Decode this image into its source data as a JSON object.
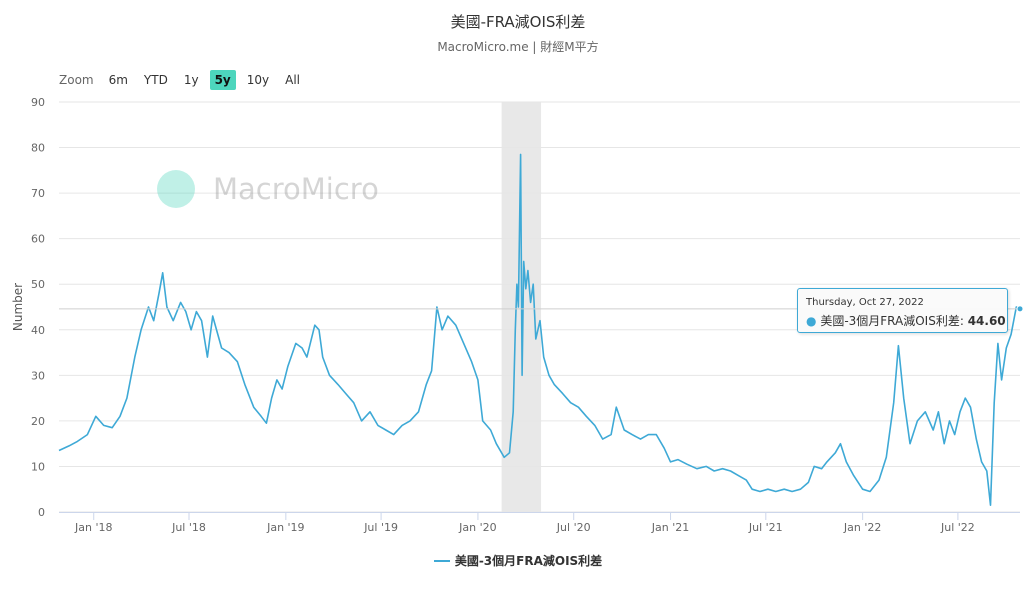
{
  "header": {
    "title": "美國-FRA減OIS利差",
    "subtitle": "MacroMicro.me | 財經M平方"
  },
  "zoom": {
    "label": "Zoom",
    "buttons": [
      "6m",
      "YTD",
      "1y",
      "5y",
      "10y",
      "All"
    ],
    "active": "5y"
  },
  "watermark": "MacroMicro",
  "tooltip": {
    "date": "Thursday, Oct 27, 2022",
    "series": "美國-3個月FRA減OIS利差",
    "value": "44.60"
  },
  "colors": {
    "series": "#3ea9d6",
    "accent": "#4dd6bd",
    "recession_band": "#e8e8e8"
  },
  "chart_data": {
    "type": "line",
    "ylabel": "Number",
    "ylim": [
      0,
      90
    ],
    "yticks": [
      0,
      10,
      20,
      30,
      40,
      50,
      60,
      70,
      80,
      90
    ],
    "xrange": [
      "2017-10-27",
      "2022-10-27"
    ],
    "xticks": [
      {
        "label": "Jan '18",
        "date": "2018-01-01"
      },
      {
        "label": "Jul '18",
        "date": "2018-07-01"
      },
      {
        "label": "Jan '19",
        "date": "2019-01-01"
      },
      {
        "label": "Jul '19",
        "date": "2019-07-01"
      },
      {
        "label": "Jan '20",
        "date": "2020-01-01"
      },
      {
        "label": "Jul '20",
        "date": "2020-07-01"
      },
      {
        "label": "Jan '21",
        "date": "2021-01-01"
      },
      {
        "label": "Jul '21",
        "date": "2021-07-01"
      },
      {
        "label": "Jan '22",
        "date": "2022-01-01"
      },
      {
        "label": "Jul '22",
        "date": "2022-07-01"
      }
    ],
    "shaded_band": [
      "2020-02-15",
      "2020-04-30"
    ],
    "series": [
      {
        "name": "美國-3個月FRA減OIS利差",
        "points": [
          [
            "2017-10-27",
            13.5
          ],
          [
            "2017-11-15",
            14.5
          ],
          [
            "2017-12-01",
            15.5
          ],
          [
            "2017-12-20",
            17.0
          ],
          [
            "2018-01-05",
            21.0
          ],
          [
            "2018-01-20",
            19.0
          ],
          [
            "2018-02-05",
            18.5
          ],
          [
            "2018-02-20",
            21.0
          ],
          [
            "2018-03-05",
            25.0
          ],
          [
            "2018-03-20",
            34.0
          ],
          [
            "2018-04-01",
            40.0
          ],
          [
            "2018-04-15",
            45.0
          ],
          [
            "2018-04-25",
            42.0
          ],
          [
            "2018-05-05",
            48.0
          ],
          [
            "2018-05-12",
            52.5
          ],
          [
            "2018-05-20",
            45.0
          ],
          [
            "2018-06-01",
            42.0
          ],
          [
            "2018-06-15",
            46.0
          ],
          [
            "2018-06-25",
            44.0
          ],
          [
            "2018-07-05",
            40.0
          ],
          [
            "2018-07-15",
            44.0
          ],
          [
            "2018-07-25",
            42.0
          ],
          [
            "2018-08-05",
            34.0
          ],
          [
            "2018-08-15",
            43.0
          ],
          [
            "2018-09-01",
            36.0
          ],
          [
            "2018-09-15",
            35.0
          ],
          [
            "2018-10-01",
            33.0
          ],
          [
            "2018-10-15",
            28.0
          ],
          [
            "2018-11-01",
            23.0
          ],
          [
            "2018-11-15",
            21.0
          ],
          [
            "2018-11-25",
            19.5
          ],
          [
            "2018-12-05",
            25.0
          ],
          [
            "2018-12-15",
            29.0
          ],
          [
            "2018-12-25",
            27.0
          ],
          [
            "2019-01-05",
            32.0
          ],
          [
            "2019-01-20",
            37.0
          ],
          [
            "2019-02-01",
            36.0
          ],
          [
            "2019-02-10",
            34.0
          ],
          [
            "2019-02-25",
            41.0
          ],
          [
            "2019-03-05",
            40.0
          ],
          [
            "2019-03-12",
            34.0
          ],
          [
            "2019-03-25",
            30.0
          ],
          [
            "2019-04-10",
            28.0
          ],
          [
            "2019-04-25",
            26.0
          ],
          [
            "2019-05-10",
            24.0
          ],
          [
            "2019-05-25",
            20.0
          ],
          [
            "2019-06-10",
            22.0
          ],
          [
            "2019-06-25",
            19.0
          ],
          [
            "2019-07-10",
            18.0
          ],
          [
            "2019-07-25",
            17.0
          ],
          [
            "2019-08-10",
            19.0
          ],
          [
            "2019-08-25",
            20.0
          ],
          [
            "2019-09-10",
            22.0
          ],
          [
            "2019-09-25",
            28.0
          ],
          [
            "2019-10-05",
            31.0
          ],
          [
            "2019-10-15",
            45.0
          ],
          [
            "2019-10-25",
            40.0
          ],
          [
            "2019-11-05",
            43.0
          ],
          [
            "2019-11-20",
            41.0
          ],
          [
            "2019-12-05",
            37.0
          ],
          [
            "2019-12-20",
            33.0
          ],
          [
            "2020-01-01",
            29.0
          ],
          [
            "2020-01-10",
            20.0
          ],
          [
            "2020-01-25",
            18.0
          ],
          [
            "2020-02-05",
            15.0
          ],
          [
            "2020-02-20",
            12.0
          ],
          [
            "2020-03-01",
            13.0
          ],
          [
            "2020-03-08",
            22.0
          ],
          [
            "2020-03-12",
            40.0
          ],
          [
            "2020-03-15",
            50.0
          ],
          [
            "2020-03-18",
            45.0
          ],
          [
            "2020-03-22",
            78.5
          ],
          [
            "2020-03-25",
            30.0
          ],
          [
            "2020-03-28",
            55.0
          ],
          [
            "2020-04-01",
            49.0
          ],
          [
            "2020-04-05",
            53.0
          ],
          [
            "2020-04-10",
            46.0
          ],
          [
            "2020-04-15",
            50.0
          ],
          [
            "2020-04-20",
            38.0
          ],
          [
            "2020-04-28",
            42.0
          ],
          [
            "2020-05-05",
            34.0
          ],
          [
            "2020-05-15",
            30.0
          ],
          [
            "2020-05-25",
            28.0
          ],
          [
            "2020-06-10",
            26.0
          ],
          [
            "2020-06-25",
            24.0
          ],
          [
            "2020-07-10",
            23.0
          ],
          [
            "2020-07-25",
            21.0
          ],
          [
            "2020-08-10",
            19.0
          ],
          [
            "2020-08-25",
            16.0
          ],
          [
            "2020-09-10",
            17.0
          ],
          [
            "2020-09-20",
            23.0
          ],
          [
            "2020-10-05",
            18.0
          ],
          [
            "2020-10-20",
            17.0
          ],
          [
            "2020-11-05",
            16.0
          ],
          [
            "2020-11-20",
            17.0
          ],
          [
            "2020-12-05",
            17.0
          ],
          [
            "2020-12-20",
            14.0
          ],
          [
            "2021-01-01",
            11.0
          ],
          [
            "2021-01-15",
            11.5
          ],
          [
            "2021-02-01",
            10.5
          ],
          [
            "2021-02-20",
            9.5
          ],
          [
            "2021-03-10",
            10.0
          ],
          [
            "2021-03-25",
            9.0
          ],
          [
            "2021-04-10",
            9.5
          ],
          [
            "2021-04-25",
            9.0
          ],
          [
            "2021-05-10",
            8.0
          ],
          [
            "2021-05-25",
            7.0
          ],
          [
            "2021-06-05",
            5.0
          ],
          [
            "2021-06-20",
            4.5
          ],
          [
            "2021-07-05",
            5.0
          ],
          [
            "2021-07-20",
            4.5
          ],
          [
            "2021-08-05",
            5.0
          ],
          [
            "2021-08-20",
            4.5
          ],
          [
            "2021-09-05",
            5.0
          ],
          [
            "2021-09-20",
            6.5
          ],
          [
            "2021-10-01",
            10.0
          ],
          [
            "2021-10-15",
            9.5
          ],
          [
            "2021-10-25",
            11.0
          ],
          [
            "2021-11-10",
            13.0
          ],
          [
            "2021-11-20",
            15.0
          ],
          [
            "2021-12-01",
            11.0
          ],
          [
            "2021-12-15",
            8.0
          ],
          [
            "2022-01-01",
            5.0
          ],
          [
            "2022-01-15",
            4.5
          ],
          [
            "2022-02-01",
            7.0
          ],
          [
            "2022-02-15",
            12.0
          ],
          [
            "2022-03-01",
            24.0
          ],
          [
            "2022-03-10",
            36.5
          ],
          [
            "2022-03-20",
            25.0
          ],
          [
            "2022-04-01",
            15.0
          ],
          [
            "2022-04-15",
            20.0
          ],
          [
            "2022-04-30",
            22.0
          ],
          [
            "2022-05-15",
            18.0
          ],
          [
            "2022-05-25",
            22.0
          ],
          [
            "2022-06-05",
            15.0
          ],
          [
            "2022-06-15",
            20.0
          ],
          [
            "2022-06-25",
            17.0
          ],
          [
            "2022-07-05",
            22.0
          ],
          [
            "2022-07-15",
            25.0
          ],
          [
            "2022-07-25",
            23.0
          ],
          [
            "2022-08-05",
            16.0
          ],
          [
            "2022-08-15",
            11.0
          ],
          [
            "2022-08-25",
            9.0
          ],
          [
            "2022-09-01",
            1.5
          ],
          [
            "2022-09-08",
            24.0
          ],
          [
            "2022-09-15",
            37.0
          ],
          [
            "2022-09-22",
            29.0
          ],
          [
            "2022-10-01",
            36.0
          ],
          [
            "2022-10-10",
            39.0
          ],
          [
            "2022-10-20",
            45.0
          ],
          [
            "2022-10-27",
            44.6
          ]
        ]
      }
    ],
    "legend": "bottom-center",
    "grid": true
  }
}
